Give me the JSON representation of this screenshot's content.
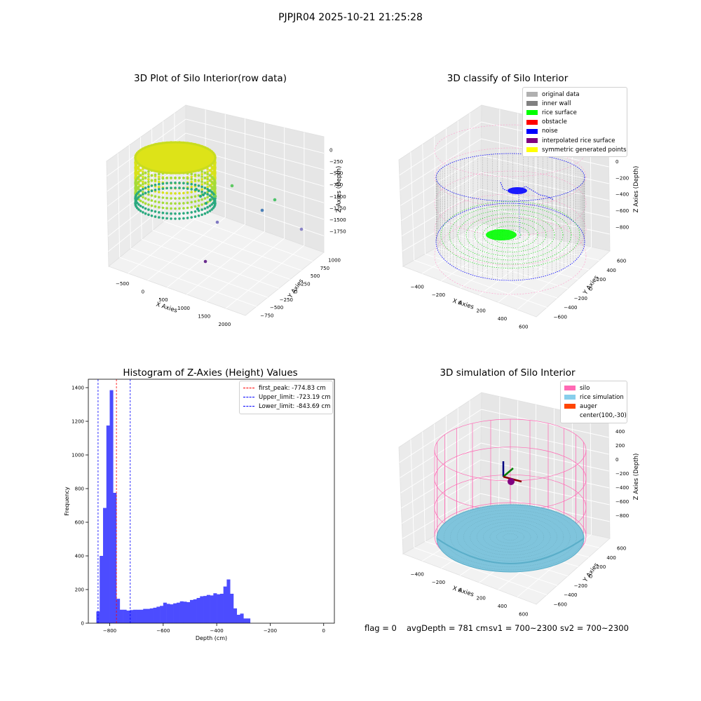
{
  "suptitle": "PJPJR04 2025-10-21 21:25:28",
  "status": {
    "flag": "flag = 0",
    "avg_depth": "avgDepth = 781 cm",
    "sv1": "sv1 = 700~2300",
    "sv2": "sv2 = 700~2300"
  },
  "colors": {
    "hist_bar": "#4c4cff",
    "first_peak": "#ff0000",
    "limits": "#0000ff",
    "silo": "#ff69b4",
    "rice_simulation": "#87ceeb",
    "auger": "#ff4500"
  },
  "chart_data": [
    {
      "type": "scatter",
      "title": "3D Plot of Silo Interior(row data)",
      "xlabel": "X Axies",
      "ylabel": "Y Axies",
      "zlabel": "Z Axies (Depth)",
      "x_ticks": [
        "−500",
        "0",
        "500",
        "1000",
        "1500",
        "2000"
      ],
      "y_ticks": [
        "−750",
        "−500",
        "−250",
        "0",
        "250",
        "500",
        "750",
        "1000"
      ],
      "z_ticks": [
        "−1750",
        "−1500",
        "−1250",
        "−1000",
        "−750",
        "−500",
        "−250",
        "0"
      ],
      "grid": true
    },
    {
      "type": "scatter",
      "title": "3D classify of Silo Interior",
      "xlabel": "X Axies",
      "ylabel": "Y Axies",
      "zlabel": "Z Axies (Depth)",
      "x_ticks": [
        "−400",
        "−200",
        "0",
        "200",
        "400",
        "600"
      ],
      "y_ticks": [
        "−600",
        "−400",
        "−200",
        "0",
        "200",
        "400",
        "600"
      ],
      "z_ticks": [
        "−800",
        "−600",
        "−400",
        "−200",
        "0",
        "200"
      ],
      "legend": [
        {
          "label": "original data",
          "color": "#b0b0b0"
        },
        {
          "label": "inner wall",
          "color": "#808080"
        },
        {
          "label": "rice surface",
          "color": "#00ff00"
        },
        {
          "label": "obstacle",
          "color": "#ff0000"
        },
        {
          "label": "noise",
          "color": "#0000ff"
        },
        {
          "label": "interpolated rice surface",
          "color": "#800080"
        },
        {
          "label": "symmetric generated points",
          "color": "#ffff00"
        }
      ],
      "grid": true
    },
    {
      "type": "bar",
      "title": "Histogram of Z-Axies (Height) Values",
      "xlabel": "Depth (cm)",
      "ylabel": "Frequency",
      "xlim": [
        -880,
        40
      ],
      "ylim": [
        0,
        1450
      ],
      "x_ticks": [
        -800,
        -600,
        -400,
        -200,
        0
      ],
      "x_tick_labels": [
        "−800",
        "−600",
        "−400",
        "−200",
        "0"
      ],
      "y_ticks": [
        0,
        200,
        400,
        600,
        800,
        1000,
        1200,
        1400
      ],
      "bin_start": -850,
      "bin_width": 12.5,
      "values": [
        70,
        400,
        685,
        1175,
        1385,
        775,
        145,
        80,
        80,
        75,
        78,
        80,
        80,
        80,
        85,
        85,
        88,
        92,
        98,
        103,
        122,
        115,
        112,
        118,
        122,
        130,
        128,
        125,
        138,
        142,
        150,
        160,
        162,
        168,
        165,
        178,
        172,
        175,
        218,
        260,
        175,
        88,
        50,
        57,
        28,
        28
      ],
      "lines": [
        {
          "label": "first_peak: -774.83 cm",
          "x": -774.83,
          "color": "#ff0000"
        },
        {
          "label": "Upper_limit: -723.19 cm",
          "x": -723.19,
          "color": "#0000ff"
        },
        {
          "label": "Lower_limit: -843.69 cm",
          "x": -843.69,
          "color": "#0000ff"
        }
      ],
      "legend_position": "upper right"
    },
    {
      "type": "scatter",
      "title": "3D simulation of Silo Interior",
      "xlabel": "X Axies",
      "ylabel": "Y Axies",
      "zlabel": "Z Axies (Depth)",
      "x_ticks": [
        "−400",
        "−200",
        "0",
        "200",
        "400",
        "600"
      ],
      "y_ticks": [
        "−600",
        "−400",
        "−200",
        "0",
        "200",
        "400",
        "600"
      ],
      "z_ticks": [
        "−800",
        "−600",
        "−400",
        "−200",
        "0",
        "200",
        "400"
      ],
      "legend": [
        {
          "label": "silo",
          "color": "#ff69b4"
        },
        {
          "label": "rice simulation",
          "color": "#87ceeb"
        },
        {
          "label": "auger",
          "color": "#ff4500"
        },
        {
          "label": "center(100,-30)",
          "color": ""
        }
      ],
      "grid": true
    }
  ]
}
